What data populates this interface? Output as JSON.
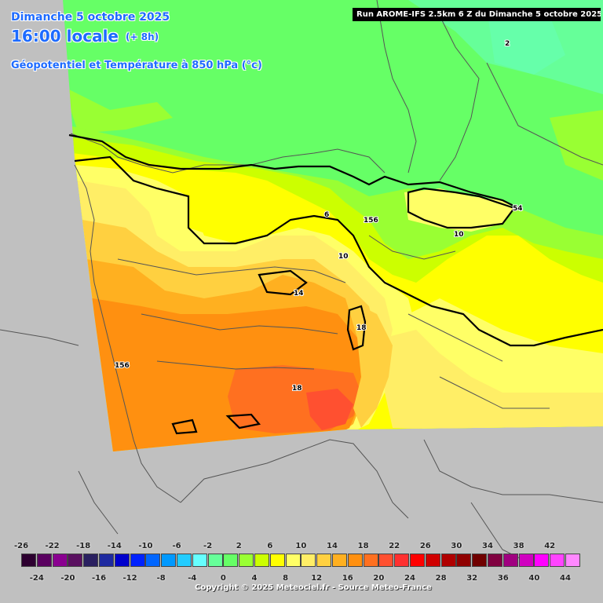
{
  "header": {
    "date": "Dimanche 5 octobre 2025",
    "time": "16:00 locale",
    "offset": "(+ 8h)",
    "parameter": "Géopotentiel et Température à 850 hPa (°c)"
  },
  "run_info": "Run AROME-IFS 2.5km 6 Z du Dimanche 5 octobre 2025",
  "contour_labels": [
    "2",
    "6",
    "156",
    "54",
    "10",
    "10",
    "14",
    "18",
    "156",
    "18"
  ],
  "legend": {
    "top_ticks": [
      "-26",
      "-22",
      "-18",
      "-14",
      "-10",
      "-6",
      "-2",
      "2",
      "6",
      "10",
      "14",
      "18",
      "22",
      "26",
      "30",
      "34",
      "38",
      "42"
    ],
    "bottom_ticks": [
      "-24",
      "-20",
      "-16",
      "-12",
      "-8",
      "-4",
      "0",
      "4",
      "8",
      "12",
      "16",
      "20",
      "24",
      "28",
      "32",
      "36",
      "40",
      "44"
    ],
    "colors": [
      "#2d0030",
      "#5a0060",
      "#8a0090",
      "#5a1060",
      "#2a2060",
      "#1e2aa0",
      "#0000cc",
      "#0022ff",
      "#0066ff",
      "#0099ff",
      "#22ccff",
      "#66ffff",
      "#66ff99",
      "#66ff66",
      "#99ff33",
      "#ccff00",
      "#ffff00",
      "#ffff66",
      "#ffee66",
      "#ffd040",
      "#ffb020",
      "#ff9010",
      "#ff7020",
      "#ff5030",
      "#ff3030",
      "#ff0000",
      "#d00000",
      "#b00000",
      "#900000",
      "#700000",
      "#800040",
      "#a00080",
      "#d000c0",
      "#ff00ff",
      "#ff44ff",
      "#ff88ff"
    ]
  },
  "copyright": "Copyright © 2025 Meteociel.fr - Source Meteo-France"
}
